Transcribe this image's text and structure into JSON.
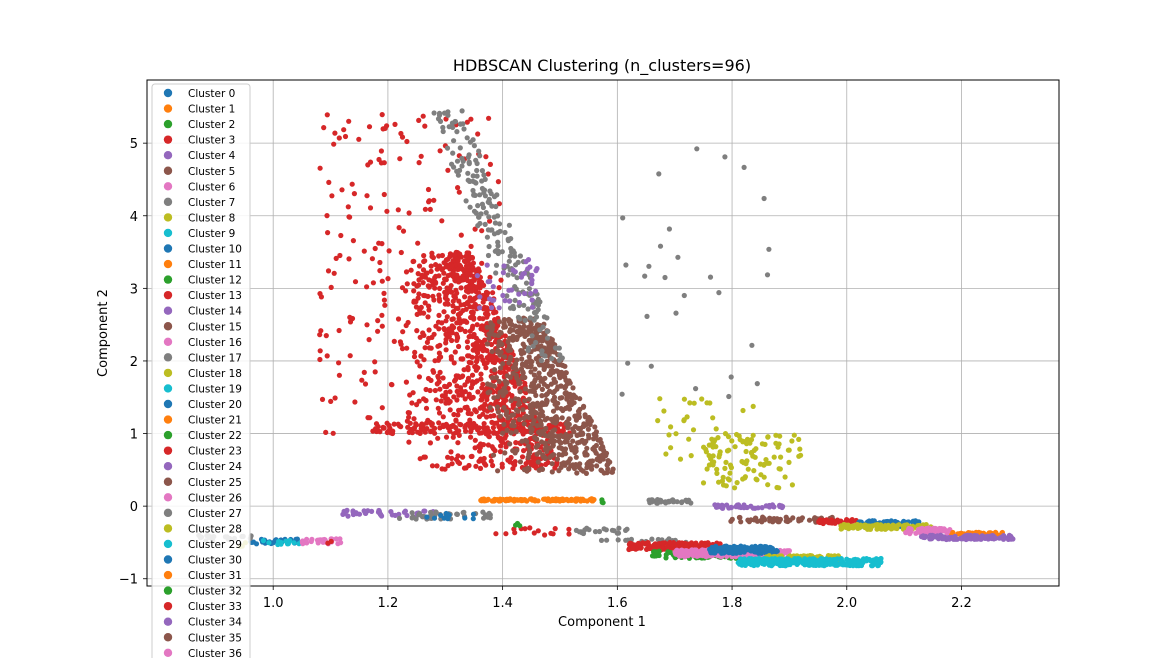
{
  "chart_data": {
    "type": "scatter",
    "title": "HDBSCAN Clustering (n_clusters=96)",
    "xlabel": "Component 1",
    "ylabel": "Component 2",
    "xlim": [
      0.78,
      2.37
    ],
    "ylim": [
      -1.1,
      5.87
    ],
    "xticks": [
      1.0,
      1.2,
      1.4,
      1.6,
      1.8,
      2.0,
      2.2
    ],
    "yticks": [
      -1,
      0,
      1,
      2,
      3,
      4,
      5
    ],
    "xtick_labels": [
      "1.0",
      "1.2",
      "1.4",
      "1.6",
      "1.8",
      "2.0",
      "2.2"
    ],
    "ytick_labels": [
      "−1",
      "0",
      "1",
      "2",
      "3",
      "4",
      "5"
    ],
    "grid": true,
    "legend_position": "upper-left",
    "palette": [
      "#1f77b4",
      "#ff7f0e",
      "#2ca02c",
      "#d62728",
      "#9467bd",
      "#8c564b",
      "#e377c2",
      "#7f7f7f",
      "#bcbd22",
      "#17becf"
    ],
    "legend": [
      "Cluster 0",
      "Cluster 1",
      "Cluster 2",
      "Cluster 3",
      "Cluster 4",
      "Cluster 5",
      "Cluster 6",
      "Cluster 7",
      "Cluster 8",
      "Cluster 9",
      "Cluster 10",
      "Cluster 11",
      "Cluster 12",
      "Cluster 13",
      "Cluster 14",
      "Cluster 15",
      "Cluster 16",
      "Cluster 17",
      "Cluster 18",
      "Cluster 19",
      "Cluster 20",
      "Cluster 21",
      "Cluster 22",
      "Cluster 23",
      "Cluster 24",
      "Cluster 25",
      "Cluster 26",
      "Cluster 27",
      "Cluster 28",
      "Cluster 29",
      "Cluster 30",
      "Cluster 31",
      "Cluster 32",
      "Cluster 33",
      "Cluster 34",
      "Cluster 35",
      "Cluster 36"
    ],
    "groups": [
      {
        "color": "#d62728",
        "n": 900,
        "x": [
          1.22,
          1.5
        ],
        "y": [
          0.5,
          3.5
        ],
        "shape": "tri-left"
      },
      {
        "color": "#d62728",
        "n": 220,
        "x": [
          1.08,
          1.4
        ],
        "y": [
          1.0,
          5.4
        ],
        "shape": "uniform"
      },
      {
        "color": "#d62728",
        "n": 120,
        "x": [
          1.17,
          1.52
        ],
        "y": [
          1.0,
          1.15
        ],
        "shape": "uniform"
      },
      {
        "color": "#8c564b",
        "n": 650,
        "x": [
          1.36,
          1.6
        ],
        "y": [
          0.45,
          2.6
        ],
        "shape": "tri-left"
      },
      {
        "color": "#7f7f7f",
        "n": 200,
        "x": [
          1.3,
          1.48
        ],
        "y": [
          2.0,
          5.45
        ],
        "shape": "diag"
      },
      {
        "color": "#9467bd",
        "n": 40,
        "x": [
          1.35,
          1.46
        ],
        "y": [
          2.7,
          3.4
        ],
        "shape": "uniform"
      },
      {
        "color": "#7f7f7f",
        "n": 28,
        "x": [
          1.6,
          1.87
        ],
        "y": [
          1.5,
          5.0
        ],
        "shape": "uniform"
      },
      {
        "color": "#bcbd22",
        "n": 90,
        "x": [
          1.76,
          1.92
        ],
        "y": [
          0.25,
          1.0
        ],
        "shape": "uniform"
      },
      {
        "color": "#bcbd22",
        "n": 45,
        "x": [
          1.67,
          1.84
        ],
        "y": [
          0.3,
          1.5
        ],
        "shape": "uniform"
      },
      {
        "color": "#ff7f0e",
        "n": 110,
        "x": [
          1.36,
          1.56
        ],
        "y": [
          0.07,
          0.1
        ],
        "shape": "uniform"
      },
      {
        "color": "#7f7f7f",
        "n": 30,
        "x": [
          1.65,
          1.73
        ],
        "y": [
          0.04,
          0.09
        ],
        "shape": "uniform"
      },
      {
        "color": "#9467bd",
        "n": 40,
        "x": [
          1.77,
          1.89
        ],
        "y": [
          -0.03,
          0.02
        ],
        "shape": "uniform"
      },
      {
        "color": "#2ca02c",
        "n": 3,
        "x": [
          1.57,
          1.59
        ],
        "y": [
          0.04,
          0.09
        ],
        "shape": "uniform"
      },
      {
        "color": "#9467bd",
        "n": 40,
        "x": [
          1.12,
          1.28
        ],
        "y": [
          -0.14,
          -0.05
        ],
        "shape": "uniform"
      },
      {
        "color": "#7f7f7f",
        "n": 40,
        "x": [
          1.22,
          1.38
        ],
        "y": [
          -0.18,
          -0.08
        ],
        "shape": "uniform"
      },
      {
        "color": "#1f77b4",
        "n": 12,
        "x": [
          1.26,
          1.36
        ],
        "y": [
          -0.18,
          -0.1
        ],
        "shape": "uniform"
      },
      {
        "color": "#1f77b4",
        "n": 25,
        "x": [
          0.95,
          1.05
        ],
        "y": [
          -0.52,
          -0.45
        ],
        "shape": "uniform"
      },
      {
        "color": "#17becf",
        "n": 15,
        "x": [
          0.98,
          1.05
        ],
        "y": [
          -0.53,
          -0.47
        ],
        "shape": "uniform"
      },
      {
        "color": "#e377c2",
        "n": 25,
        "x": [
          1.05,
          1.12
        ],
        "y": [
          -0.52,
          -0.45
        ],
        "shape": "uniform"
      },
      {
        "color": "#7f7f7f",
        "n": 20,
        "x": [
          0.87,
          0.97
        ],
        "y": [
          -0.48,
          -0.4
        ],
        "shape": "uniform"
      },
      {
        "color": "#d62728",
        "n": 2,
        "x": [
          1.09,
          1.11
        ],
        "y": [
          -0.52,
          -0.48
        ],
        "shape": "uniform"
      },
      {
        "color": "#bcbd22",
        "n": 3,
        "x": [
          0.93,
          0.97
        ],
        "y": [
          -0.56,
          -0.5
        ],
        "shape": "uniform"
      },
      {
        "color": "#d62728",
        "n": 15,
        "x": [
          1.38,
          1.52
        ],
        "y": [
          -0.4,
          -0.3
        ],
        "shape": "uniform"
      },
      {
        "color": "#7f7f7f",
        "n": 20,
        "x": [
          1.52,
          1.62
        ],
        "y": [
          -0.38,
          -0.3
        ],
        "shape": "uniform"
      },
      {
        "color": "#2ca02c",
        "n": 3,
        "x": [
          1.42,
          1.43
        ],
        "y": [
          -0.27,
          -0.22
        ],
        "shape": "uniform"
      },
      {
        "color": "#7f7f7f",
        "n": 22,
        "x": [
          1.57,
          1.72
        ],
        "y": [
          -0.52,
          -0.45
        ],
        "shape": "uniform"
      },
      {
        "color": "#d62728",
        "n": 160,
        "x": [
          1.62,
          1.78
        ],
        "y": [
          -0.6,
          -0.5
        ],
        "shape": "uniform"
      },
      {
        "color": "#2ca02c",
        "n": 120,
        "x": [
          1.66,
          1.88
        ],
        "y": [
          -0.72,
          -0.62
        ],
        "shape": "uniform"
      },
      {
        "color": "#e377c2",
        "n": 200,
        "x": [
          1.7,
          1.9
        ],
        "y": [
          -0.7,
          -0.6
        ],
        "shape": "uniform"
      },
      {
        "color": "#1f77b4",
        "n": 150,
        "x": [
          1.76,
          1.88
        ],
        "y": [
          -0.65,
          -0.55
        ],
        "shape": "uniform"
      },
      {
        "color": "#bcbd22",
        "n": 90,
        "x": [
          1.86,
          1.99
        ],
        "y": [
          -0.76,
          -0.68
        ],
        "shape": "uniform"
      },
      {
        "color": "#17becf",
        "n": 300,
        "x": [
          1.81,
          2.06
        ],
        "y": [
          -0.82,
          -0.72
        ],
        "shape": "uniform"
      },
      {
        "color": "#8c564b",
        "n": 60,
        "x": [
          1.79,
          1.98
        ],
        "y": [
          -0.22,
          -0.15
        ],
        "shape": "uniform"
      },
      {
        "color": "#d62728",
        "n": 40,
        "x": [
          1.95,
          2.02
        ],
        "y": [
          -0.25,
          -0.18
        ],
        "shape": "uniform"
      },
      {
        "color": "#1f77b4",
        "n": 80,
        "x": [
          2.02,
          2.13
        ],
        "y": [
          -0.28,
          -0.2
        ],
        "shape": "uniform"
      },
      {
        "color": "#bcbd22",
        "n": 100,
        "x": [
          1.99,
          2.15
        ],
        "y": [
          -0.32,
          -0.25
        ],
        "shape": "uniform"
      },
      {
        "color": "#e377c2",
        "n": 50,
        "x": [
          2.1,
          2.18
        ],
        "y": [
          -0.38,
          -0.3
        ],
        "shape": "uniform"
      },
      {
        "color": "#ff7f0e",
        "n": 60,
        "x": [
          2.18,
          2.28
        ],
        "y": [
          -0.41,
          -0.36
        ],
        "shape": "uniform"
      },
      {
        "color": "#9467bd",
        "n": 100,
        "x": [
          2.13,
          2.29
        ],
        "y": [
          -0.46,
          -0.4
        ],
        "shape": "uniform"
      }
    ]
  }
}
